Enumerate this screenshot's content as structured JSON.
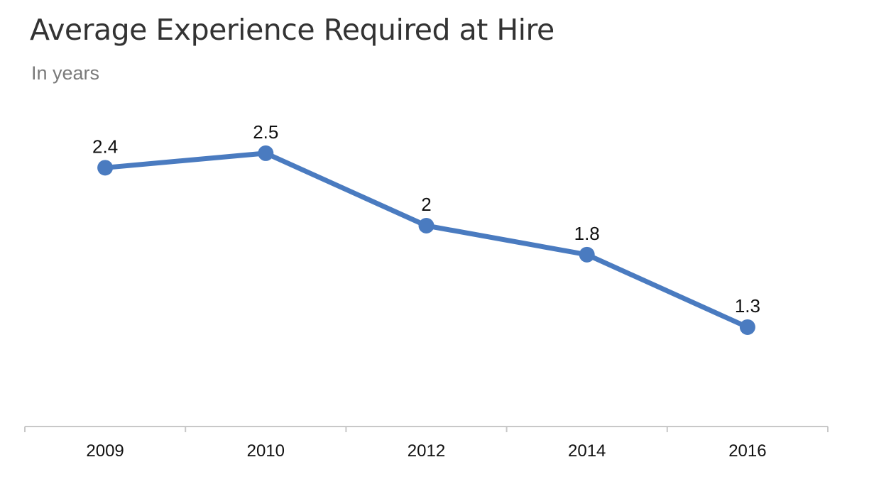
{
  "colors": {
    "series": "#4a7bc0",
    "axis": "#c8c8c8",
    "title": "#333333",
    "subtitle": "#7a7a7a"
  },
  "chart_data": {
    "type": "line",
    "title": "Average Experience Required at Hire",
    "subtitle": "In years",
    "xlabel": "",
    "ylabel": "",
    "categories": [
      "2009",
      "2010",
      "2012",
      "2014",
      "2016"
    ],
    "series": [
      {
        "name": "Average Experience Required at Hire",
        "values": [
          2.4,
          2.5,
          2,
          1.8,
          1.3
        ],
        "labels": [
          "2.4",
          "2.5",
          "2",
          "1.8",
          "1.3"
        ]
      }
    ],
    "grid": false,
    "legend": "none"
  }
}
